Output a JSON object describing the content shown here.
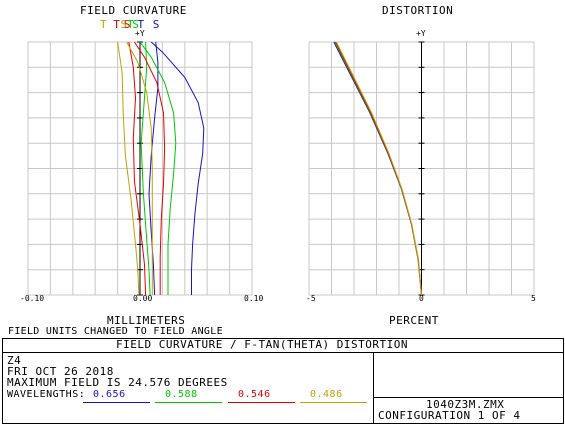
{
  "chart_data": [
    {
      "type": "line",
      "title": "FIELD CURVATURE",
      "xlabel": "MILLIMETERS",
      "ylabel": "+Y",
      "xlim": [
        -0.1,
        0.1
      ],
      "ylim": [
        0,
        1
      ],
      "xticks": [
        "-0.10",
        "0.00",
        "0.10"
      ],
      "legend": [
        "T",
        "T",
        "S",
        "S",
        "T",
        "S",
        "T",
        "S"
      ],
      "grid": true,
      "series": [
        {
          "name": "0.656 S",
          "color": "#1414c8",
          "points": [
            [
              0.01,
              1.0
            ],
            [
              0.02,
              0.96
            ],
            [
              0.04,
              0.86
            ],
            [
              0.052,
              0.76
            ],
            [
              0.057,
              0.66
            ],
            [
              0.056,
              0.56
            ],
            [
              0.052,
              0.44
            ],
            [
              0.049,
              0.32
            ],
            [
              0.047,
              0.2
            ],
            [
              0.046,
              0.1
            ],
            [
              0.046,
              0.0
            ]
          ]
        },
        {
          "name": "0.656 T",
          "color": "#1414c8",
          "points": [
            [
              0.014,
              1.0
            ],
            [
              0.016,
              0.92
            ],
            [
              0.016,
              0.82
            ],
            [
              0.013,
              0.7
            ],
            [
              0.01,
              0.55
            ],
            [
              0.008,
              0.4
            ],
            [
              0.01,
              0.25
            ],
            [
              0.012,
              0.12
            ],
            [
              0.013,
              0.0
            ]
          ]
        },
        {
          "name": "0.588 S",
          "color": "#00c800",
          "points": [
            [
              0.0,
              1.0
            ],
            [
              0.01,
              0.94
            ],
            [
              0.022,
              0.84
            ],
            [
              0.03,
              0.72
            ],
            [
              0.032,
              0.6
            ],
            [
              0.03,
              0.48
            ],
            [
              0.027,
              0.34
            ],
            [
              0.025,
              0.2
            ],
            [
              0.025,
              0.0
            ]
          ]
        },
        {
          "name": "0.588 T",
          "color": "#00c800",
          "points": [
            [
              0.005,
              1.0
            ],
            [
              0.006,
              0.9
            ],
            [
              0.004,
              0.78
            ],
            [
              0.001,
              0.6
            ],
            [
              0.003,
              0.4
            ],
            [
              0.006,
              0.22
            ],
            [
              0.008,
              0.1
            ],
            [
              0.009,
              0.0
            ]
          ]
        },
        {
          "name": "0.546 S",
          "color": "#e60000",
          "points": [
            [
              -0.005,
              1.0
            ],
            [
              0.004,
              0.94
            ],
            [
              0.015,
              0.84
            ],
            [
              0.021,
              0.72
            ],
            [
              0.022,
              0.58
            ],
            [
              0.021,
              0.44
            ],
            [
              0.019,
              0.3
            ],
            [
              0.018,
              0.15
            ],
            [
              0.018,
              0.0
            ]
          ]
        },
        {
          "name": "0.546 T",
          "color": "#e60000",
          "points": [
            [
              -0.01,
              1.0
            ],
            [
              -0.006,
              0.9
            ],
            [
              -0.004,
              0.78
            ],
            [
              -0.006,
              0.62
            ],
            [
              -0.005,
              0.45
            ],
            [
              0.0,
              0.28
            ],
            [
              0.004,
              0.12
            ],
            [
              0.005,
              0.0
            ]
          ]
        },
        {
          "name": "0.486 S",
          "color": "#c8a000",
          "points": [
            [
              -0.012,
              1.0
            ],
            [
              -0.002,
              0.92
            ],
            [
              0.006,
              0.8
            ],
            [
              0.01,
              0.66
            ],
            [
              0.011,
              0.5
            ],
            [
              0.011,
              0.34
            ],
            [
              0.011,
              0.18
            ],
            [
              0.011,
              0.0
            ]
          ]
        },
        {
          "name": "0.486 T",
          "color": "#c8a000",
          "points": [
            [
              -0.02,
              1.0
            ],
            [
              -0.016,
              0.88
            ],
            [
              -0.015,
              0.72
            ],
            [
              -0.013,
              0.55
            ],
            [
              -0.008,
              0.38
            ],
            [
              -0.004,
              0.2
            ],
            [
              -0.002,
              0.1
            ],
            [
              -0.001,
              0.0
            ]
          ]
        }
      ]
    },
    {
      "type": "line",
      "title": "DISTORTION",
      "xlabel": "PERCENT",
      "ylabel": "+Y",
      "xlim": [
        -5,
        5
      ],
      "ylim": [
        0,
        1
      ],
      "xticks": [
        "-5",
        "0",
        "5"
      ],
      "grid": true,
      "series": [
        {
          "name": "0.656",
          "color": "#1414c8",
          "points": [
            [
              -3.9,
              1.0
            ],
            [
              -3.1,
              0.86
            ],
            [
              -2.3,
              0.72
            ],
            [
              -1.5,
              0.56
            ],
            [
              -0.9,
              0.42
            ],
            [
              -0.45,
              0.28
            ],
            [
              -0.15,
              0.14
            ],
            [
              0.0,
              0.0
            ]
          ]
        },
        {
          "name": "0.588",
          "color": "#00c800",
          "points": [
            [
              -3.85,
              1.0
            ],
            [
              -3.06,
              0.86
            ],
            [
              -2.27,
              0.72
            ],
            [
              -1.48,
              0.56
            ],
            [
              -0.89,
              0.42
            ],
            [
              -0.44,
              0.28
            ],
            [
              -0.15,
              0.14
            ],
            [
              0.0,
              0.0
            ]
          ]
        },
        {
          "name": "0.546",
          "color": "#e60000",
          "points": [
            [
              -3.82,
              1.0
            ],
            [
              -3.04,
              0.86
            ],
            [
              -2.25,
              0.72
            ],
            [
              -1.47,
              0.56
            ],
            [
              -0.88,
              0.42
            ],
            [
              -0.44,
              0.28
            ],
            [
              -0.14,
              0.14
            ],
            [
              0.0,
              0.0
            ]
          ]
        },
        {
          "name": "0.486",
          "color": "#c8a000",
          "points": [
            [
              -3.78,
              1.0
            ],
            [
              -3.0,
              0.86
            ],
            [
              -2.22,
              0.72
            ],
            [
              -1.45,
              0.56
            ],
            [
              -0.87,
              0.42
            ],
            [
              -0.43,
              0.28
            ],
            [
              -0.14,
              0.14
            ],
            [
              0.0,
              0.0
            ]
          ]
        }
      ]
    }
  ],
  "notes": {
    "field_units": "FIELD UNITS CHANGED TO FIELD ANGLE"
  },
  "info": {
    "banner": "FIELD CURVATURE / F-TAN(THETA) DISTORTION",
    "line1": "Z4",
    "line2": "FRI OCT 26 2018",
    "line3": "MAXIMUM FIELD IS 24.576 DEGREES",
    "wavelengths_label": "WAVELENGTHS:",
    "wavelengths": [
      {
        "value": "0.656",
        "color": "#1414c8"
      },
      {
        "value": "0.588",
        "color": "#00c800"
      },
      {
        "value": "0.546",
        "color": "#e60000"
      },
      {
        "value": "0.486",
        "color": "#c8a000"
      }
    ],
    "filename": "1040Z3M.ZMX",
    "configuration": "CONFIGURATION 1 OF 4"
  }
}
